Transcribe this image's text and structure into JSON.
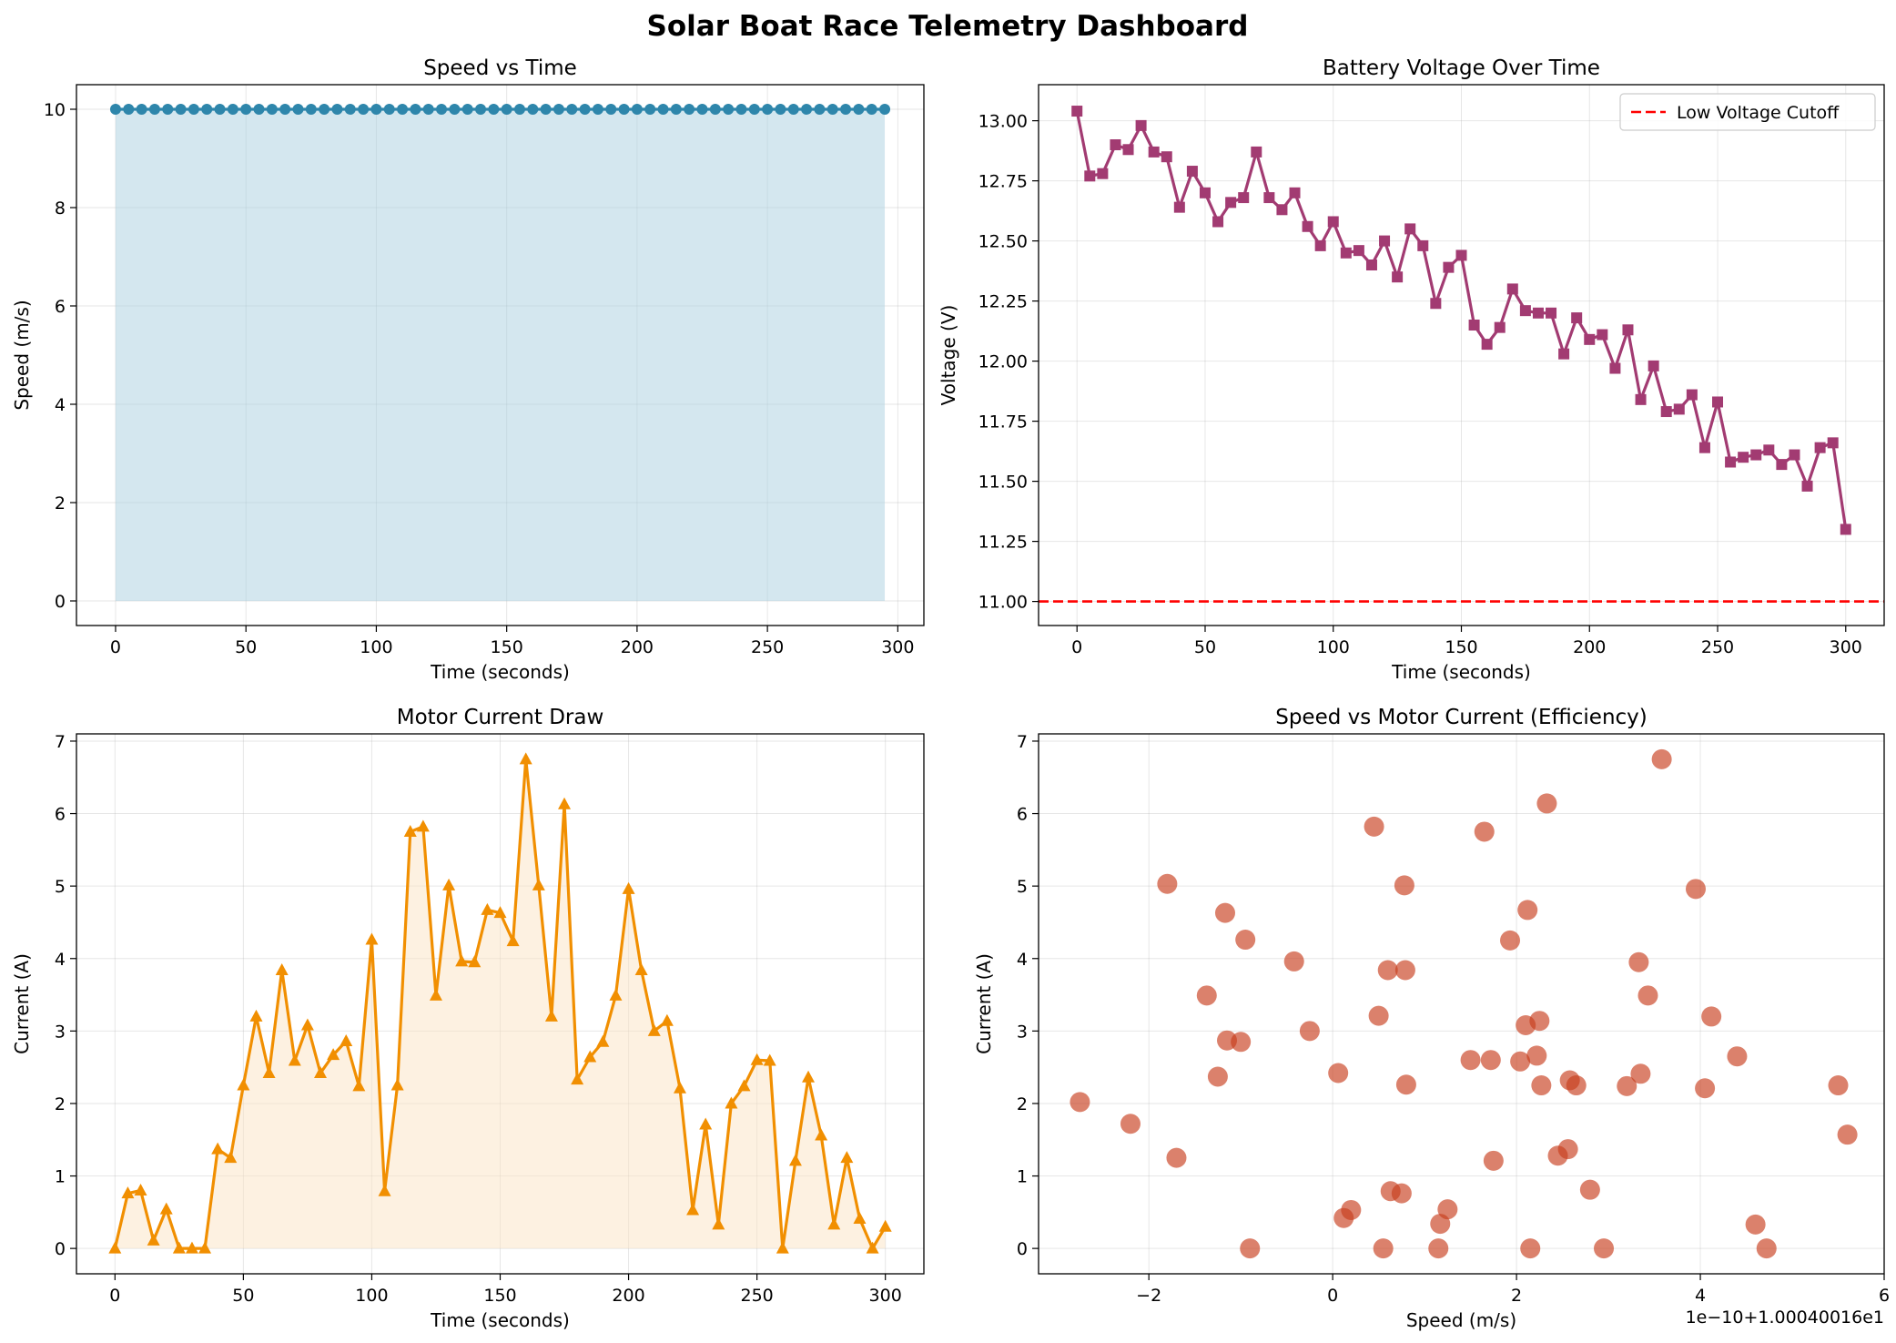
{
  "title": "Solar Boat Race Telemetry Dashboard",
  "chart_data": [
    {
      "type": "area",
      "title": "Speed vs Time",
      "xlabel": "Time (seconds)",
      "ylabel": "Speed (m/s)",
      "xlim": [
        -15,
        310
      ],
      "ylim": [
        -0.5,
        10.5
      ],
      "xticks": [
        0,
        50,
        100,
        150,
        200,
        250,
        300
      ],
      "yticks": [
        0,
        2,
        4,
        6,
        8,
        10
      ],
      "grid": true,
      "colors": {
        "line": "#2e86ab",
        "fill": "#a9cfe0"
      },
      "x": [
        0,
        5,
        10,
        15,
        20,
        25,
        30,
        35,
        40,
        45,
        50,
        55,
        60,
        65,
        70,
        75,
        80,
        85,
        90,
        95,
        100,
        105,
        110,
        115,
        120,
        125,
        130,
        135,
        140,
        145,
        150,
        155,
        160,
        165,
        170,
        175,
        180,
        185,
        190,
        195,
        200,
        205,
        210,
        215,
        220,
        225,
        230,
        235,
        240,
        245,
        250,
        255,
        260,
        265,
        270,
        275,
        280,
        285,
        290,
        295
      ],
      "y": [
        10,
        10,
        10,
        10,
        10,
        10,
        10,
        10,
        10,
        10,
        10,
        10,
        10,
        10,
        10,
        10,
        10,
        10,
        10,
        10,
        10,
        10,
        10,
        10,
        10,
        10,
        10,
        10,
        10,
        10,
        10,
        10,
        10,
        10,
        10,
        10,
        10,
        10,
        10,
        10,
        10,
        10,
        10,
        10,
        10,
        10,
        10,
        10,
        10,
        10,
        10,
        10,
        10,
        10,
        10,
        10,
        10,
        10,
        10,
        10
      ]
    },
    {
      "type": "line",
      "title": "Battery Voltage Over Time",
      "xlabel": "Time (seconds)",
      "ylabel": "Voltage (V)",
      "xlim": [
        -15,
        315
      ],
      "ylim": [
        10.9,
        13.15
      ],
      "xticks": [
        0,
        50,
        100,
        150,
        200,
        250,
        300
      ],
      "yticks": [
        11.0,
        11.25,
        11.5,
        11.75,
        12.0,
        12.25,
        12.5,
        12.75,
        13.0
      ],
      "ytick_labels": [
        "11.00",
        "11.25",
        "11.50",
        "11.75",
        "12.00",
        "12.25",
        "12.50",
        "12.75",
        "13.00"
      ],
      "grid": true,
      "legend": {
        "position": "upper right",
        "entries": [
          "Low Voltage Cutoff"
        ]
      },
      "colors": {
        "line": "#a23b72",
        "cutoff": "#ff0000"
      },
      "cutoff": 11.0,
      "x": [
        0,
        5,
        10,
        15,
        20,
        25,
        30,
        35,
        40,
        45,
        50,
        55,
        60,
        65,
        70,
        75,
        80,
        85,
        90,
        95,
        100,
        105,
        110,
        115,
        120,
        125,
        130,
        135,
        140,
        145,
        150,
        155,
        160,
        165,
        170,
        175,
        180,
        185,
        190,
        195,
        200,
        205,
        210,
        215,
        220,
        225,
        230,
        235,
        240,
        245,
        250,
        255,
        260,
        265,
        270,
        275,
        280,
        285,
        290,
        295,
        300
      ],
      "y": [
        13.04,
        12.77,
        12.78,
        12.9,
        12.88,
        12.98,
        12.87,
        12.85,
        12.64,
        12.79,
        12.7,
        12.58,
        12.66,
        12.68,
        12.87,
        12.68,
        12.63,
        12.7,
        12.56,
        12.48,
        12.58,
        12.45,
        12.46,
        12.4,
        12.5,
        12.35,
        12.55,
        12.48,
        12.24,
        12.39,
        12.44,
        12.15,
        12.07,
        12.14,
        12.3,
        12.21,
        12.2,
        12.2,
        12.03,
        12.18,
        12.09,
        12.11,
        11.97,
        12.13,
        11.84,
        11.98,
        11.79,
        11.8,
        11.86,
        11.64,
        11.83,
        11.58,
        11.6,
        11.61,
        11.63,
        11.57,
        11.61,
        11.48,
        11.64,
        11.66,
        11.3
      ]
    },
    {
      "type": "area",
      "title": "Motor Current Draw",
      "xlabel": "Time (seconds)",
      "ylabel": "Current (A)",
      "xlim": [
        -15,
        315
      ],
      "ylim": [
        -0.35,
        7.1
      ],
      "xticks": [
        0,
        50,
        100,
        150,
        200,
        250,
        300
      ],
      "yticks": [
        0,
        1,
        2,
        3,
        4,
        5,
        6,
        7
      ],
      "grid": true,
      "colors": {
        "line": "#f18f01",
        "fill": "#fbe3c4"
      },
      "x": [
        0,
        5,
        10,
        15,
        20,
        25,
        30,
        35,
        40,
        45,
        50,
        55,
        60,
        65,
        70,
        75,
        80,
        85,
        90,
        95,
        100,
        105,
        110,
        115,
        120,
        125,
        130,
        135,
        140,
        145,
        150,
        155,
        160,
        165,
        170,
        175,
        180,
        185,
        190,
        195,
        200,
        205,
        210,
        215,
        220,
        225,
        230,
        235,
        240,
        245,
        250,
        255,
        260,
        265,
        270,
        275,
        280,
        285,
        290,
        295,
        300
      ],
      "y": [
        0,
        0.76,
        0.8,
        0.11,
        0.54,
        0,
        0,
        0,
        1.37,
        1.25,
        2.25,
        3.2,
        2.42,
        3.84,
        2.59,
        3.08,
        2.42,
        2.67,
        2.86,
        2.24,
        4.26,
        0.79,
        2.25,
        5.75,
        5.82,
        3.49,
        5.01,
        3.96,
        3.95,
        4.67,
        4.63,
        4.24,
        6.75,
        5.01,
        3.2,
        6.13,
        2.33,
        2.64,
        2.85,
        3.49,
        4.96,
        3.84,
        3.0,
        3.14,
        2.21,
        0.53,
        1.71,
        0.33,
        2.0,
        2.24,
        2.6,
        2.59,
        0,
        1.21,
        2.36,
        1.56,
        0.33,
        1.25,
        0.41,
        0,
        0.3
      ]
    },
    {
      "type": "scatter",
      "title": "Speed vs Motor Current (Efficiency)",
      "xlabel": "Speed (m/s)",
      "ylabel": "Current (A)",
      "offset_label": "1e−10+1.00040016e1",
      "xlim": [
        -3.2,
        6.0
      ],
      "ylim": [
        -0.35,
        7.1
      ],
      "xticks": [
        -2,
        0,
        2,
        4,
        6
      ],
      "xtick_labels": [
        "−2",
        "0",
        "2",
        "4",
        "6"
      ],
      "yticks": [
        0,
        1,
        2,
        3,
        4,
        5,
        6,
        7
      ],
      "grid": true,
      "colors": {
        "marker": "#c73e1d"
      },
      "x": [
        -2.75,
        -2.2,
        -1.7,
        -0.9,
        -1.8,
        -1.17,
        -0.95,
        -1.37,
        -1.15,
        -1.0,
        -1.25,
        -0.42,
        -0.25,
        0.06,
        0.12,
        0.2,
        0.45,
        0.5,
        0.55,
        0.6,
        0.63,
        0.75,
        0.78,
        0.79,
        0.8,
        1.15,
        1.17,
        1.25,
        1.5,
        1.65,
        1.72,
        1.75,
        1.93,
        2.04,
        2.1,
        2.12,
        2.15,
        2.22,
        2.25,
        2.27,
        2.33,
        2.45,
        2.56,
        2.58,
        2.65,
        2.8,
        2.95,
        3.2,
        3.33,
        3.35,
        3.43,
        3.58,
        3.95,
        4.05,
        4.12,
        4.4,
        4.6,
        4.72,
        5.5,
        5.6
      ],
      "y": [
        2.02,
        1.72,
        1.25,
        0,
        5.03,
        4.63,
        4.26,
        3.49,
        2.87,
        2.85,
        2.37,
        3.96,
        3.0,
        2.42,
        0.42,
        0.53,
        5.82,
        3.21,
        0,
        3.84,
        0.79,
        0.76,
        5.01,
        3.84,
        2.26,
        0,
        0.34,
        0.54,
        2.6,
        5.75,
        2.6,
        1.21,
        4.25,
        2.58,
        3.08,
        4.67,
        0,
        2.66,
        3.14,
        2.25,
        6.14,
        1.28,
        1.37,
        2.32,
        2.25,
        0.81,
        0,
        2.24,
        3.95,
        2.41,
        3.49,
        6.75,
        4.96,
        2.21,
        3.2,
        2.65,
        0.33,
        0,
        2.25,
        1.57
      ]
    }
  ]
}
